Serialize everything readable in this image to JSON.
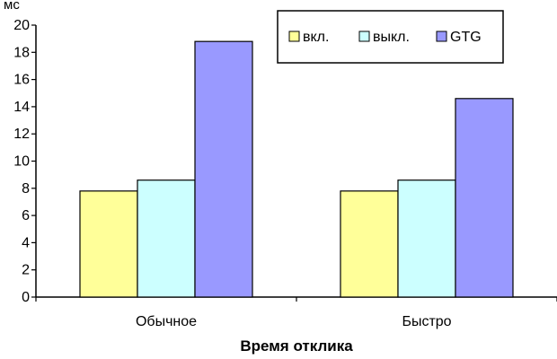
{
  "chart_data": {
    "type": "bar",
    "title": "",
    "xlabel": "Время отклика",
    "ylabel": "мс",
    "ylim": [
      0,
      20
    ],
    "ytick_step": 2,
    "yticks": [
      "0",
      "2",
      "4",
      "6",
      "8",
      "10",
      "12",
      "14",
      "16",
      "18",
      "20"
    ],
    "categories": [
      "Обычное",
      "Быстро"
    ],
    "series": [
      {
        "name": "вкл.",
        "values": [
          7.8,
          7.8
        ],
        "color": "#ffff99"
      },
      {
        "name": "выкл.",
        "values": [
          8.6,
          8.6
        ],
        "color": "#ccffff"
      },
      {
        "name": "GTG",
        "values": [
          18.8,
          14.6
        ],
        "color": "#9999ff"
      }
    ],
    "grid": false,
    "legend_position": "top-right"
  }
}
